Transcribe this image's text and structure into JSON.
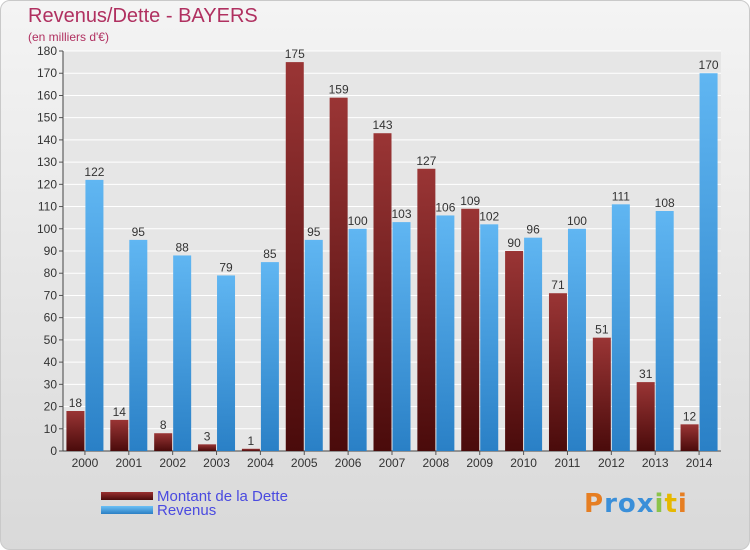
{
  "chart_data": {
    "type": "bar",
    "title": "Revenus/Dette - BAYERS",
    "subtitle": "(en milliers d'€)",
    "categories": [
      "2000",
      "2001",
      "2002",
      "2003",
      "2004",
      "2005",
      "2006",
      "2007",
      "2008",
      "2009",
      "2010",
      "2011",
      "2012",
      "2013",
      "2014"
    ],
    "series": [
      {
        "name": "Montant de la Dette",
        "color": "#7a1f1f",
        "values": [
          18,
          14,
          8,
          3,
          1,
          175,
          159,
          143,
          127,
          109,
          90,
          71,
          51,
          31,
          12
        ]
      },
      {
        "name": "Revenus",
        "color": "#4aa3e6",
        "values": [
          122,
          95,
          88,
          79,
          85,
          95,
          100,
          103,
          106,
          102,
          96,
          100,
          111,
          108,
          170
        ]
      }
    ],
    "ylim": [
      0,
      180
    ],
    "yticks": [
      0,
      10,
      20,
      30,
      40,
      50,
      60,
      70,
      80,
      90,
      100,
      110,
      120,
      130,
      140,
      150,
      160,
      170,
      180
    ],
    "grid": true,
    "legend_position": "bottom-left"
  },
  "logo": {
    "letters": [
      "P",
      "r",
      "o",
      "x",
      "i",
      "t",
      "i"
    ],
    "colors": [
      "#e67e22",
      "#3a8fd9",
      "#3a8fd9",
      "#3a8fd9",
      "#8bc34a",
      "#e6b800",
      "#e67e22"
    ]
  }
}
